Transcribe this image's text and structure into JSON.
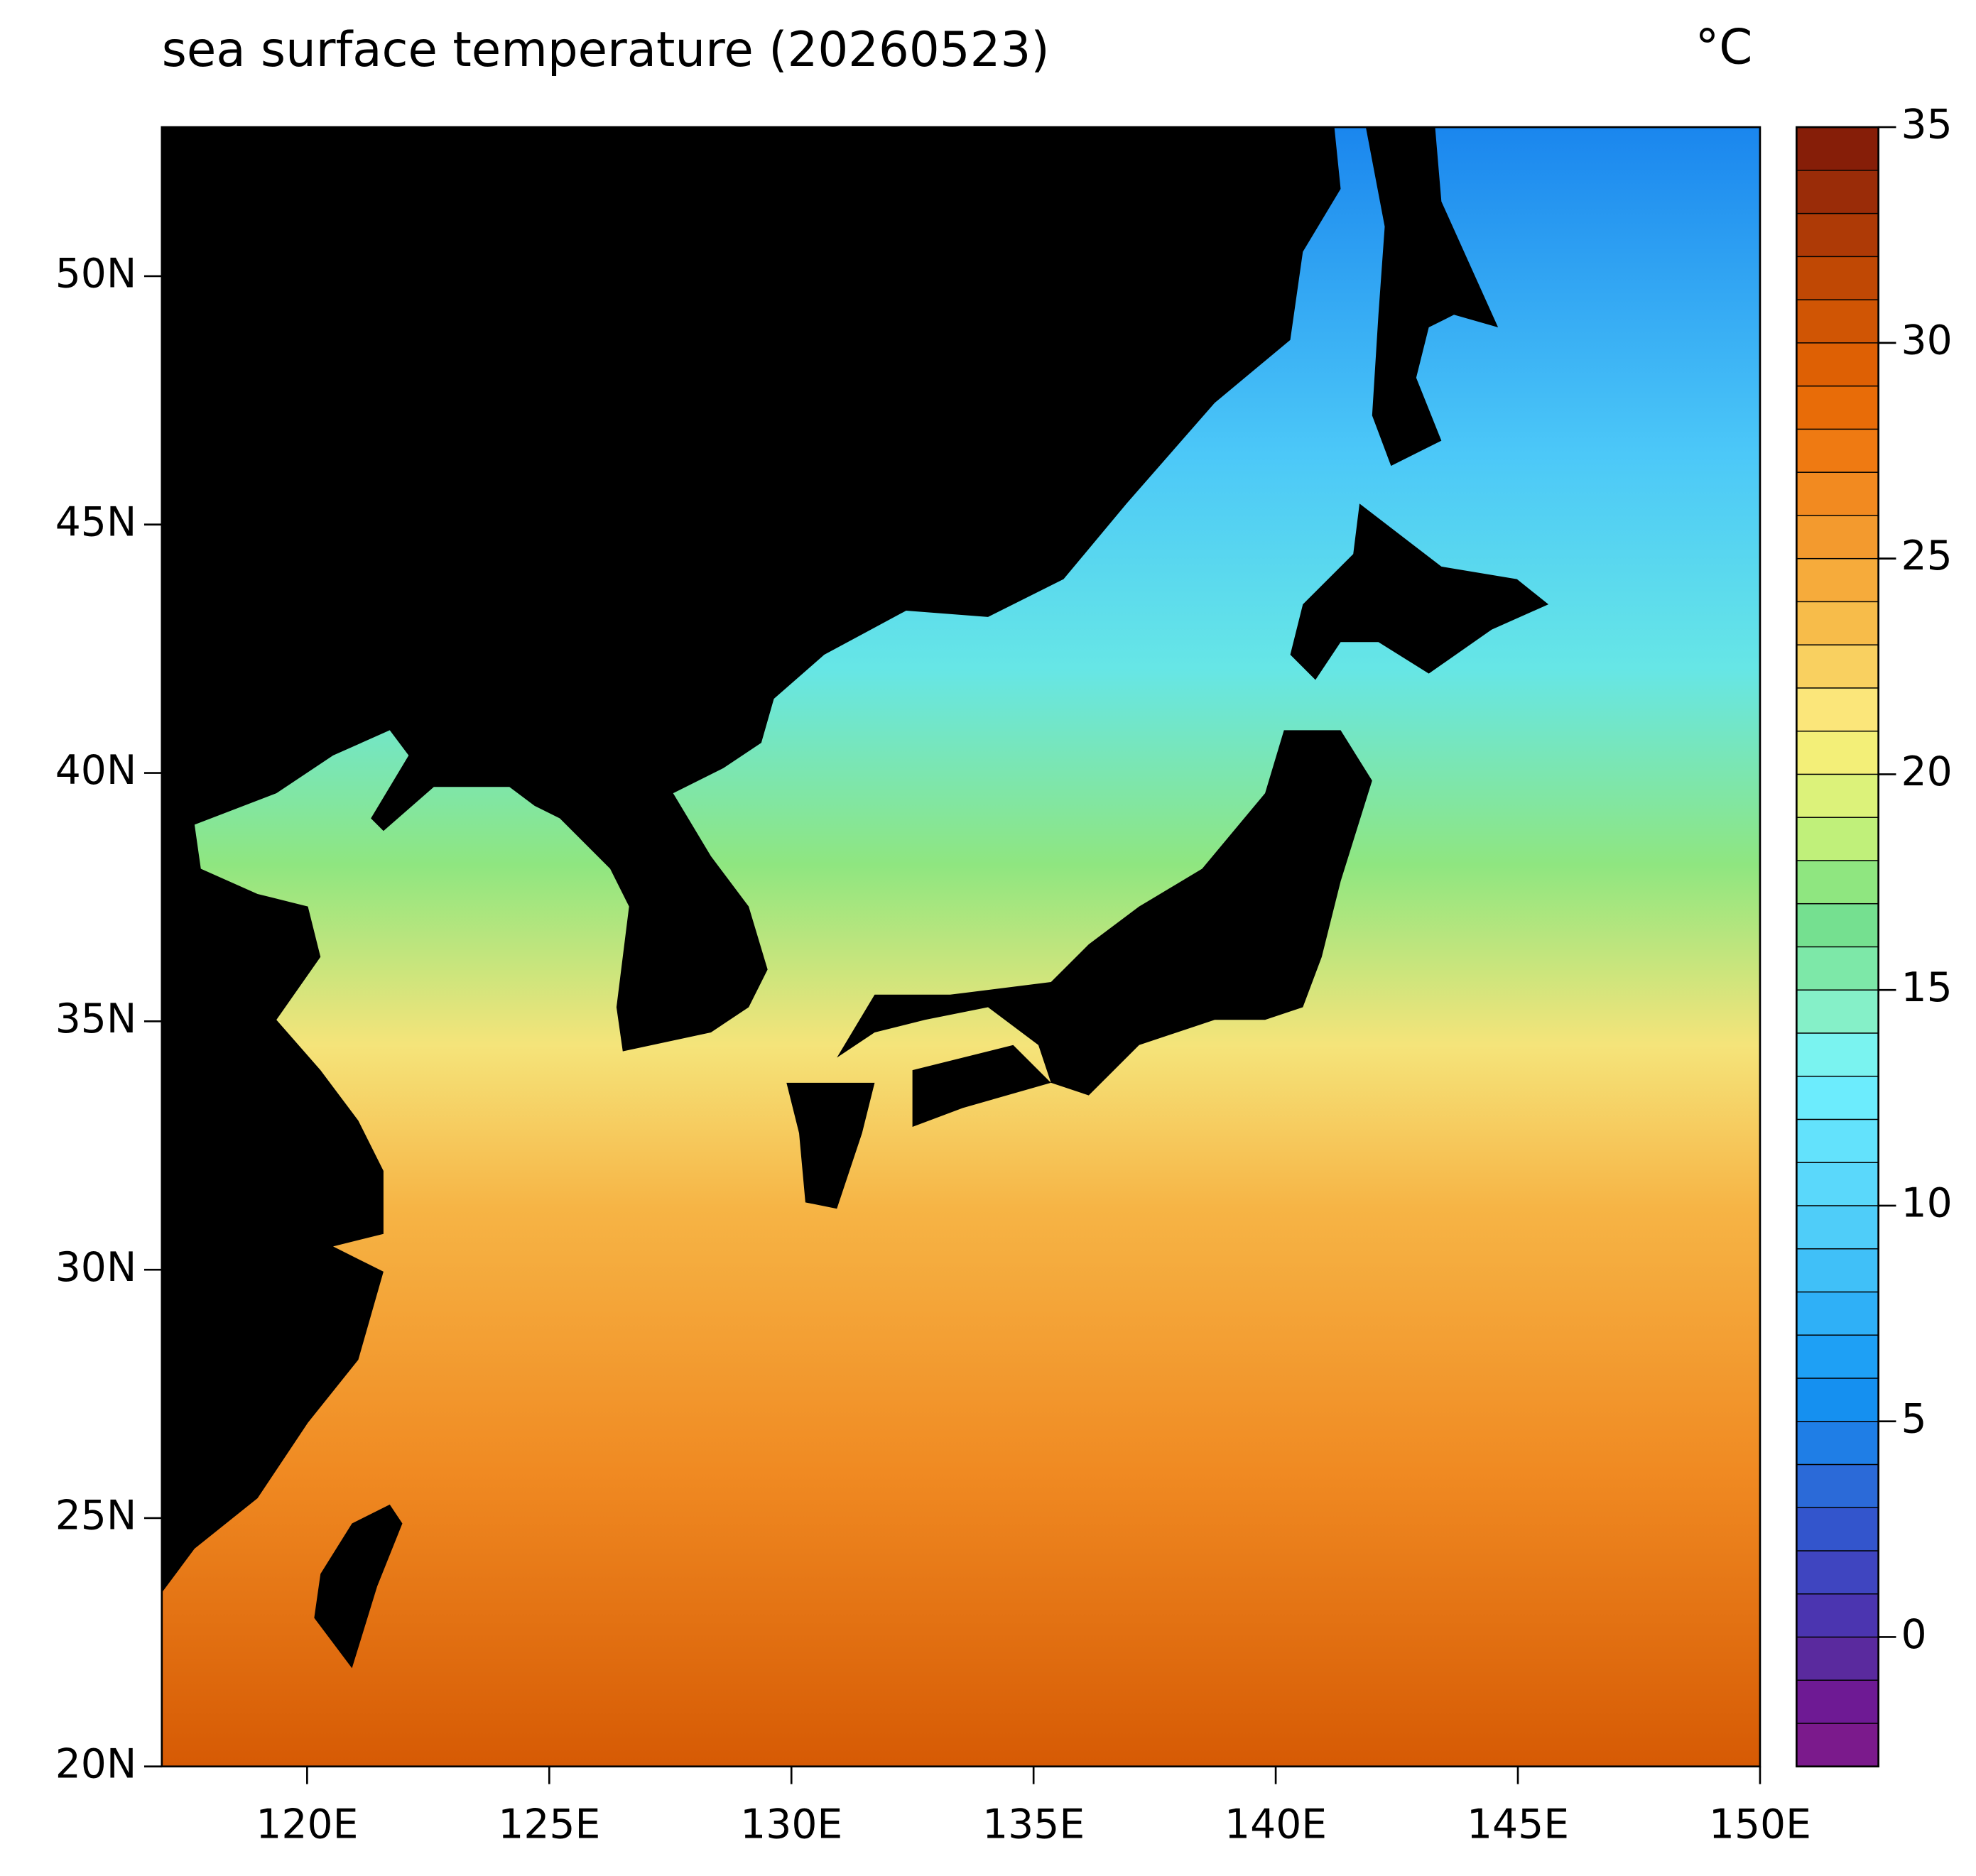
{
  "chart_data": {
    "type": "map",
    "title": "sea surface temperature (20260523)",
    "unit": "°C",
    "xlim": [
      117,
      150
    ],
    "ylim": [
      20,
      53
    ],
    "xticks": [
      {
        "value": 120,
        "label": "120E"
      },
      {
        "value": 125,
        "label": "125E"
      },
      {
        "value": 130,
        "label": "130E"
      },
      {
        "value": 135,
        "label": "135E"
      },
      {
        "value": 140,
        "label": "140E"
      },
      {
        "value": 145,
        "label": "145E"
      },
      {
        "value": 150,
        "label": "150E"
      }
    ],
    "yticks": [
      {
        "value": 20,
        "label": "20N"
      },
      {
        "value": 25,
        "label": "25N"
      },
      {
        "value": 30,
        "label": "30N"
      },
      {
        "value": 35,
        "label": "35N"
      },
      {
        "value": 40,
        "label": "40N"
      },
      {
        "value": 45,
        "label": "45N"
      },
      {
        "value": 50,
        "label": "50N"
      }
    ],
    "colorbar": {
      "clim": [
        -3,
        35
      ],
      "ticks": [
        0,
        5,
        10,
        15,
        20,
        25,
        30,
        35
      ],
      "colors": [
        "#7b1a8c",
        "#6e1a94",
        "#5a2a9e",
        "#4b35b0",
        "#3f45c0",
        "#3355cc",
        "#2b6ad8",
        "#1f7ee6",
        "#1590f0",
        "#1ea0f5",
        "#2fb0f7",
        "#40c0f8",
        "#4fcdf9",
        "#5ad8fb",
        "#63e2fc",
        "#6cecfd",
        "#7af3f0",
        "#85f0c8",
        "#7de8a8",
        "#75e090",
        "#8fe680",
        "#c0f07a",
        "#dcf27a",
        "#f3ef78",
        "#fbe67a",
        "#f9d060",
        "#f7bc4a",
        "#f6ab3b",
        "#f39a2e",
        "#f28a20",
        "#ef7a12",
        "#e86c08",
        "#de6004",
        "#d05504",
        "#c04804",
        "#ae3a06",
        "#9a2c08",
        "#861e08"
      ]
    }
  }
}
